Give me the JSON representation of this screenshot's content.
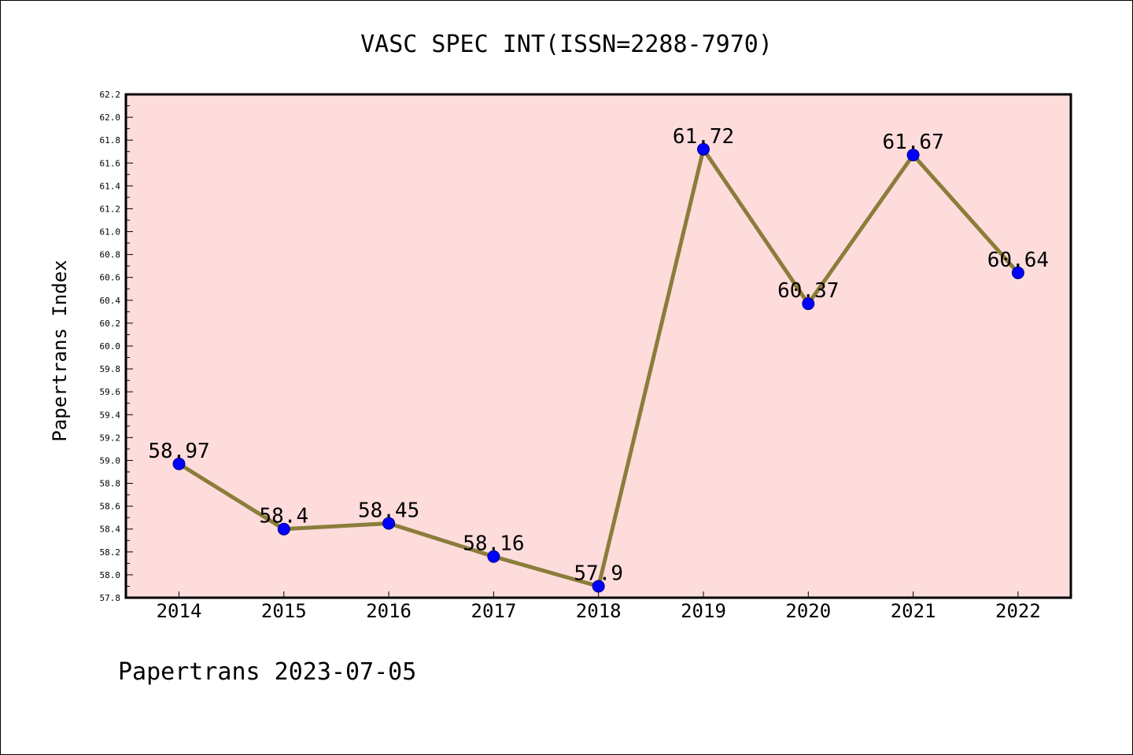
{
  "chart_data": {
    "type": "line",
    "title": "VASC SPEC INT(ISSN=2288-7970)",
    "xlabel": "",
    "ylabel": "Papertrans Index",
    "categories": [
      "2014",
      "2015",
      "2016",
      "2017",
      "2018",
      "2019",
      "2020",
      "2021",
      "2022"
    ],
    "series": [
      {
        "values": [
          58.97,
          58.4,
          58.45,
          58.16,
          57.9,
          61.72,
          60.37,
          61.67,
          60.64
        ],
        "data_labels": [
          "58.97",
          "58.4",
          "58.45",
          "58.16",
          "57.9",
          "61.72",
          "60.37",
          "61.67",
          "60.64"
        ]
      }
    ],
    "ylim": [
      57.8,
      62.2
    ],
    "yticks": [
      "57.8",
      "58.0",
      "58.2",
      "58.4",
      "58.6",
      "58.8",
      "59.0",
      "59.2",
      "59.4",
      "59.6",
      "59.8",
      "60.0",
      "60.2",
      "60.4",
      "60.6",
      "60.8",
      "61.0",
      "61.2",
      "61.4",
      "61.6",
      "61.8",
      "62.0",
      "62.2"
    ],
    "grid": false,
    "colors": {
      "plot_background": "#ffdcdc",
      "line": "#8b7d3a",
      "marker": "#0000ff",
      "marker_edge": "#000080"
    }
  },
  "footer": "Papertrans 2023-07-05"
}
